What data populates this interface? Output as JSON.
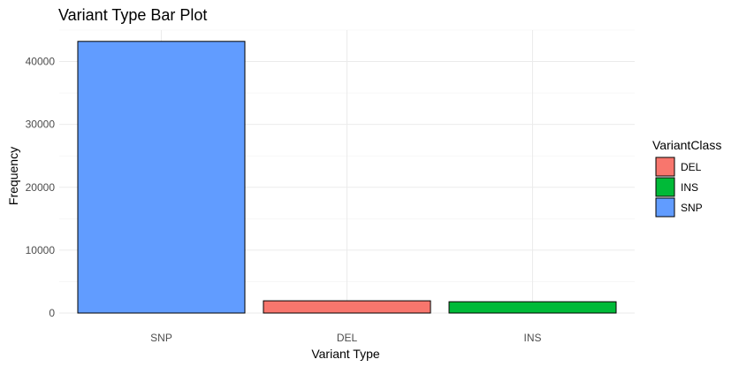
{
  "chart_data": {
    "type": "bar",
    "title": "Variant Type Bar Plot",
    "xlabel": "Variant Type",
    "ylabel": "Frequency",
    "categories": [
      "SNP",
      "DEL",
      "INS"
    ],
    "values": [
      43200,
      1950,
      1800
    ],
    "bar_colors": [
      "#619CFF",
      "#F8766D",
      "#00BA38"
    ],
    "ylim": [
      0,
      45000
    ],
    "yticks": [
      0,
      10000,
      20000,
      30000,
      40000
    ],
    "grid": true,
    "legend": {
      "title": "VariantClass",
      "placement": "right",
      "entries": [
        {
          "label": "DEL",
          "color": "#F8766D"
        },
        {
          "label": "INS",
          "color": "#00BA38"
        },
        {
          "label": "SNP",
          "color": "#619CFF"
        }
      ]
    }
  }
}
